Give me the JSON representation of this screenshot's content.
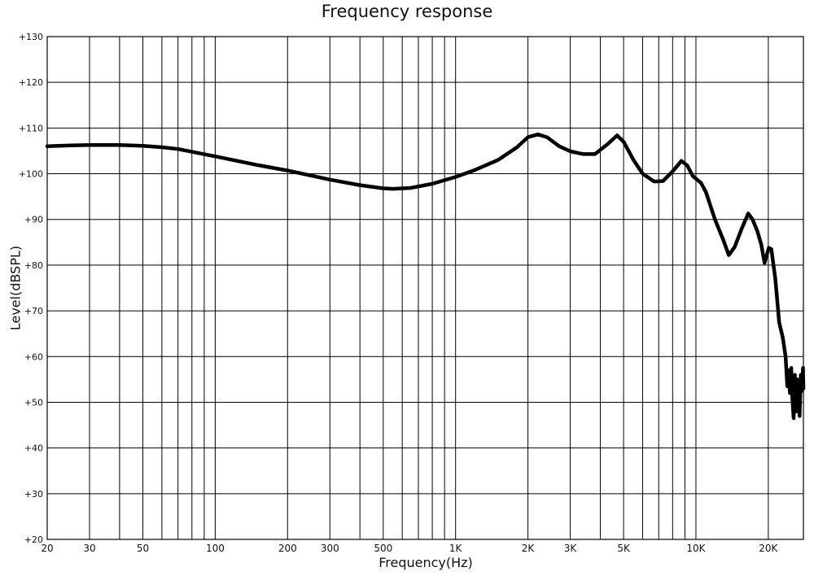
{
  "chart_data": {
    "type": "line",
    "title": "Frequency response",
    "xlabel": "Frequency(Hz)",
    "ylabel": "Level(dBSPL)",
    "x_scale": "log",
    "xlim": [
      20,
      28000
    ],
    "ylim": [
      20,
      130
    ],
    "grid": true,
    "x_ticks": [
      {
        "value": 20,
        "label": "20"
      },
      {
        "value": 30,
        "label": "30"
      },
      {
        "value": 50,
        "label": "50"
      },
      {
        "value": 100,
        "label": "100"
      },
      {
        "value": 200,
        "label": "200"
      },
      {
        "value": 300,
        "label": "300"
      },
      {
        "value": 500,
        "label": "500"
      },
      {
        "value": 1000,
        "label": "1K"
      },
      {
        "value": 2000,
        "label": "2K"
      },
      {
        "value": 3000,
        "label": "3K"
      },
      {
        "value": 5000,
        "label": "5K"
      },
      {
        "value": 10000,
        "label": "10K"
      },
      {
        "value": 20000,
        "label": "20K"
      }
    ],
    "y_ticks": [
      {
        "value": 20,
        "label": "+20"
      },
      {
        "value": 30,
        "label": "+30"
      },
      {
        "value": 40,
        "label": "+40"
      },
      {
        "value": 50,
        "label": "+50"
      },
      {
        "value": 60,
        "label": "+60"
      },
      {
        "value": 70,
        "label": "+70"
      },
      {
        "value": 80,
        "label": "+80"
      },
      {
        "value": 90,
        "label": "+90"
      },
      {
        "value": 100,
        "label": "+100"
      },
      {
        "value": 110,
        "label": "+110"
      },
      {
        "value": 120,
        "label": "+120"
      },
      {
        "value": 130,
        "label": "+130"
      }
    ],
    "minor_gridlines_x": [
      40,
      60,
      70,
      80,
      90,
      400,
      600,
      700,
      800,
      900,
      4000,
      6000,
      7000,
      8000,
      9000
    ],
    "series": [
      {
        "color": "#000000",
        "points": [
          [
            20,
            106.0
          ],
          [
            25,
            106.2
          ],
          [
            30,
            106.3
          ],
          [
            40,
            106.3
          ],
          [
            50,
            106.1
          ],
          [
            60,
            105.8
          ],
          [
            70,
            105.4
          ],
          [
            80,
            104.8
          ],
          [
            100,
            103.8
          ],
          [
            150,
            101.9
          ],
          [
            200,
            100.7
          ],
          [
            300,
            98.7
          ],
          [
            400,
            97.5
          ],
          [
            500,
            96.8
          ],
          [
            550,
            96.7
          ],
          [
            650,
            96.9
          ],
          [
            800,
            97.8
          ],
          [
            1000,
            99.3
          ],
          [
            1200,
            100.8
          ],
          [
            1500,
            103.0
          ],
          [
            1800,
            105.8
          ],
          [
            2000,
            108.0
          ],
          [
            2200,
            108.6
          ],
          [
            2400,
            108.0
          ],
          [
            2700,
            106.0
          ],
          [
            3000,
            104.9
          ],
          [
            3400,
            104.3
          ],
          [
            3800,
            104.3
          ],
          [
            4300,
            106.5
          ],
          [
            4700,
            108.4
          ],
          [
            5000,
            107.0
          ],
          [
            5500,
            103.0
          ],
          [
            6000,
            100.0
          ],
          [
            6700,
            98.3
          ],
          [
            7300,
            98.4
          ],
          [
            8000,
            100.5
          ],
          [
            8700,
            102.8
          ],
          [
            9200,
            101.8
          ],
          [
            9700,
            99.5
          ],
          [
            10500,
            98.0
          ],
          [
            11000,
            96.0
          ],
          [
            12000,
            90.0
          ],
          [
            13000,
            85.5
          ],
          [
            13700,
            82.2
          ],
          [
            14500,
            84.0
          ],
          [
            15500,
            88.0
          ],
          [
            16500,
            91.3
          ],
          [
            17200,
            90.0
          ],
          [
            18000,
            87.5
          ],
          [
            18700,
            84.5
          ],
          [
            19300,
            80.5
          ],
          [
            20100,
            83.8
          ],
          [
            20600,
            83.5
          ],
          [
            21400,
            77.0
          ],
          [
            22200,
            67.5
          ],
          [
            23000,
            64.0
          ],
          [
            23600,
            60.0
          ],
          [
            24000,
            53.5
          ],
          [
            24300,
            57.0
          ],
          [
            24600,
            52.0
          ],
          [
            24900,
            57.5
          ],
          [
            25200,
            50.5
          ],
          [
            25500,
            46.5
          ],
          [
            25800,
            56.0
          ],
          [
            26100,
            48.0
          ],
          [
            26400,
            55.0
          ],
          [
            26700,
            51.0
          ],
          [
            27000,
            47.0
          ],
          [
            27300,
            56.0
          ],
          [
            27600,
            52.5
          ],
          [
            27900,
            57.5
          ],
          [
            28000,
            53.0
          ]
        ]
      }
    ]
  }
}
